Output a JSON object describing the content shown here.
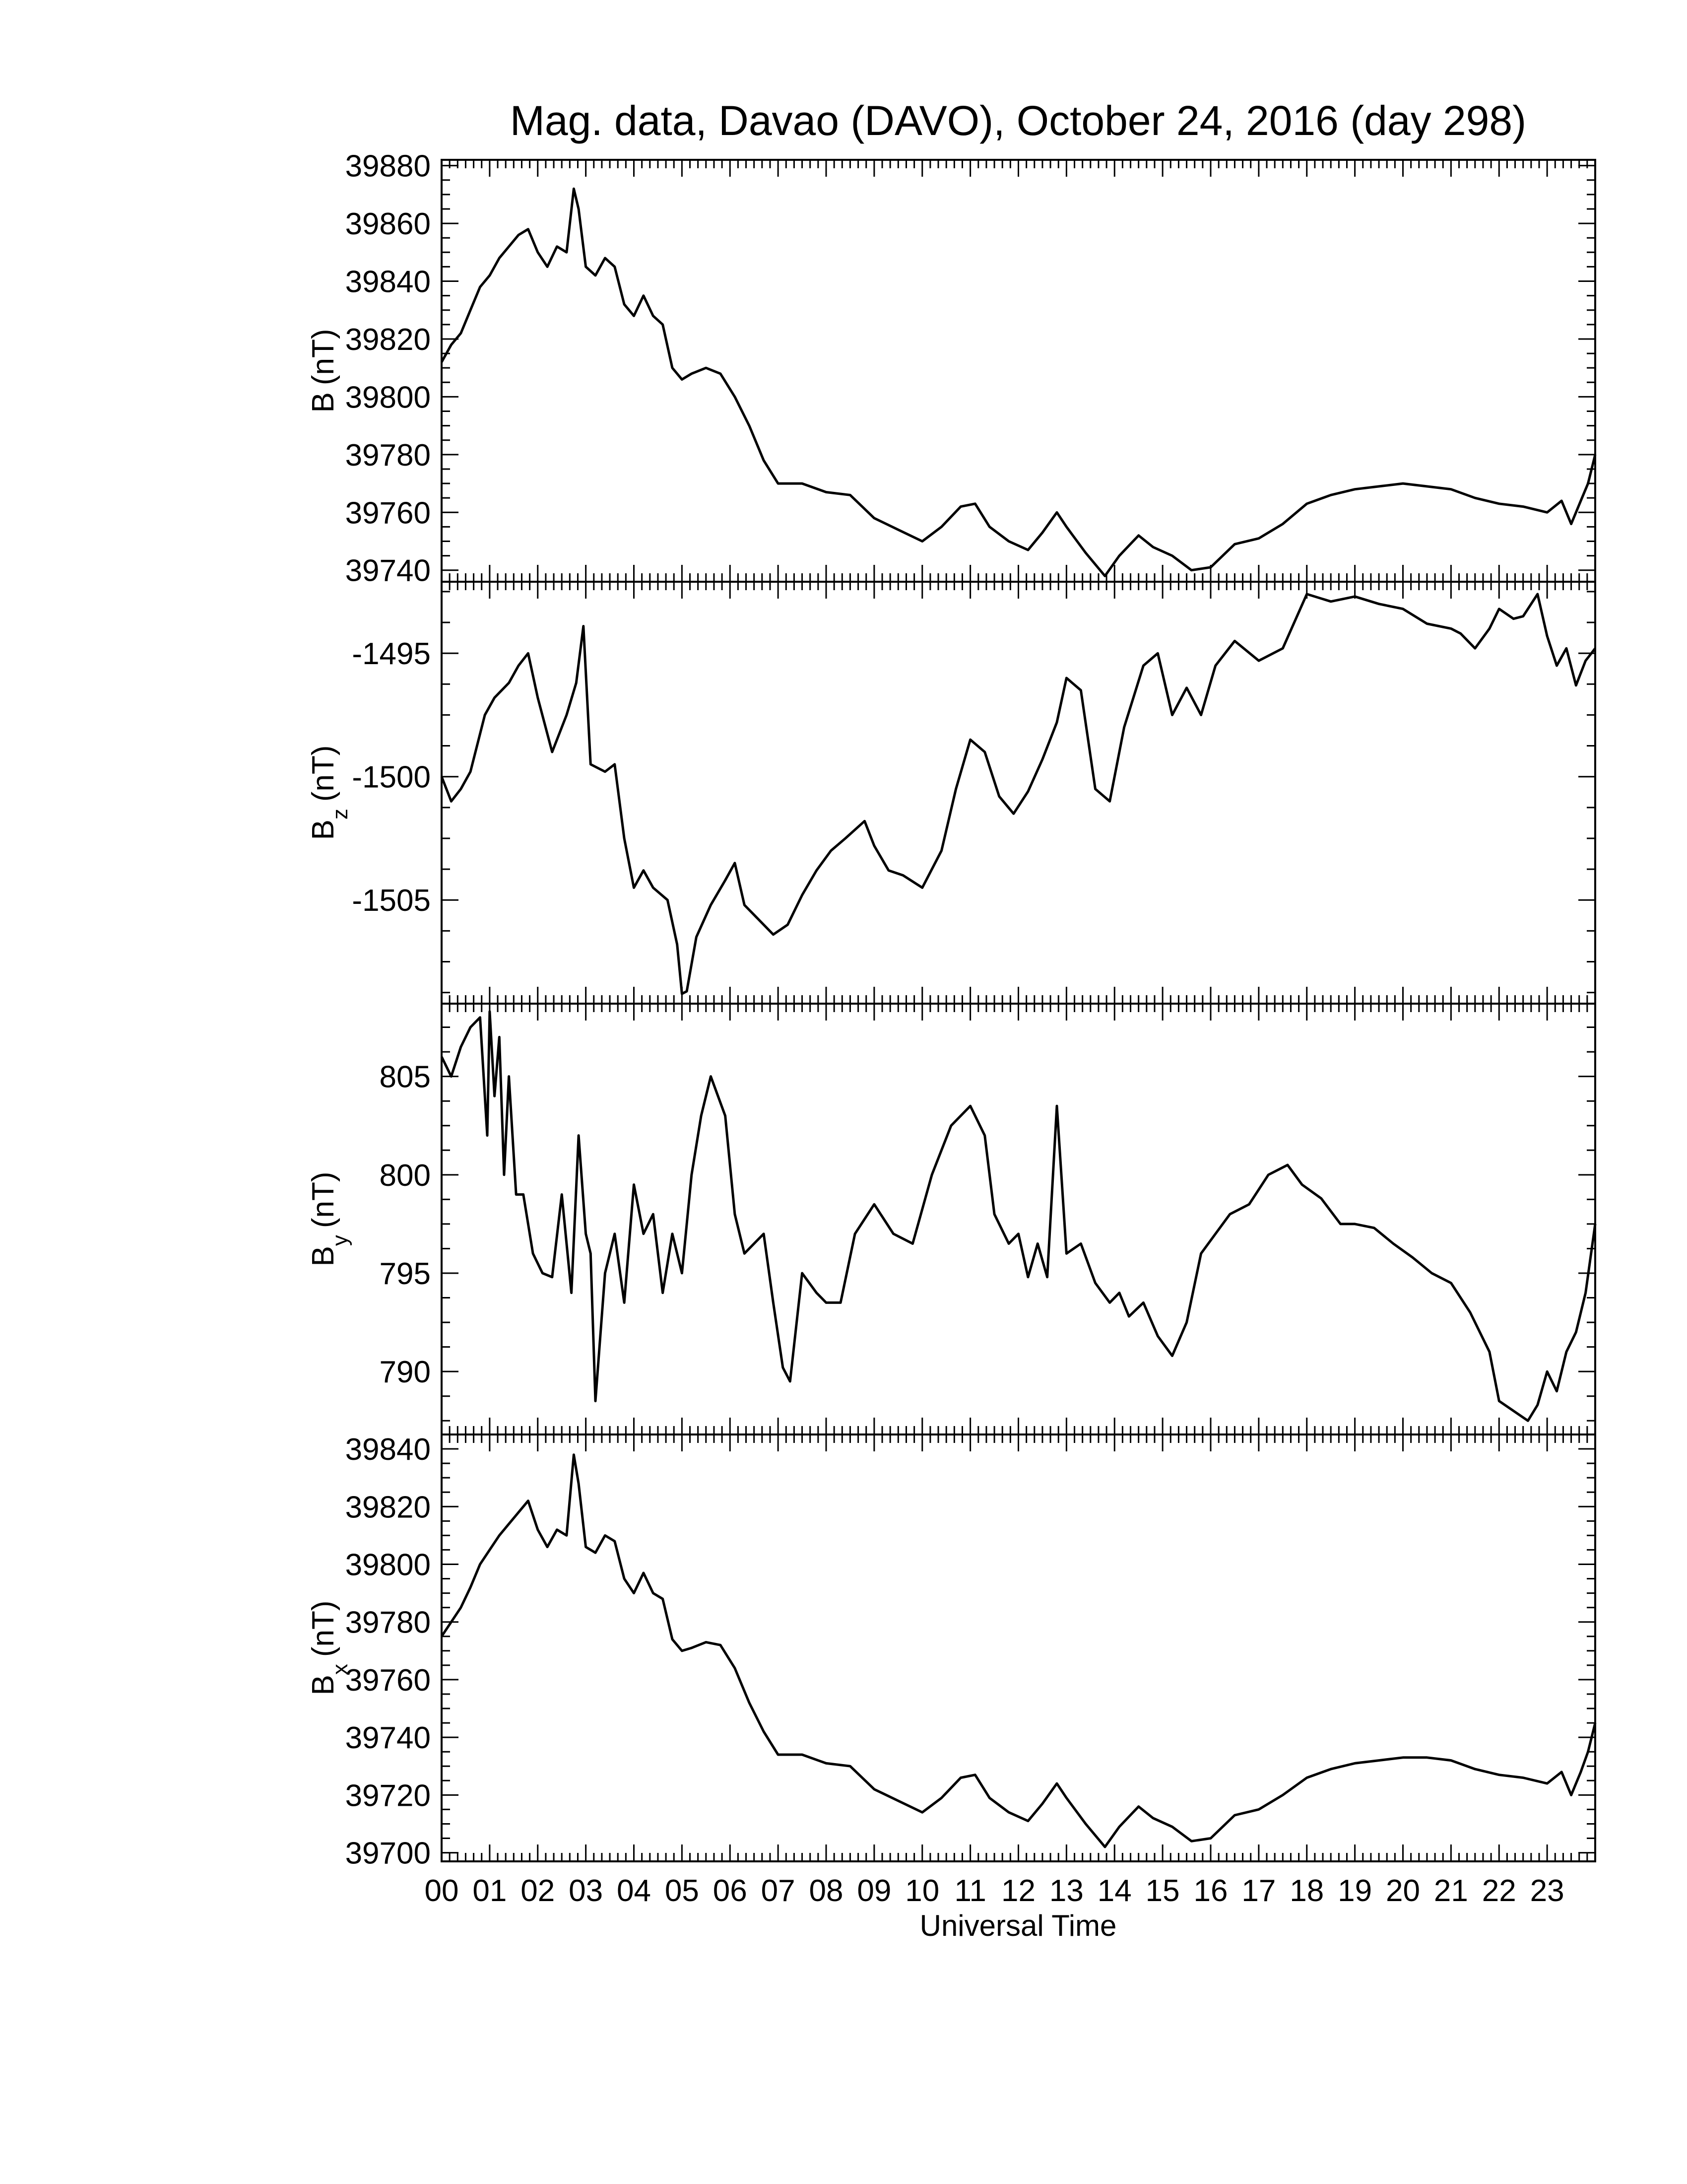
{
  "title": "Mag. data, Davao (DAVO), October 24, 2016 (day 298)",
  "xlabel": "Universal Time",
  "x_tick_labels": [
    "00",
    "01",
    "02",
    "03",
    "04",
    "05",
    "06",
    "07",
    "08",
    "09",
    "10",
    "11",
    "12",
    "13",
    "14",
    "15",
    "16",
    "17",
    "18",
    "19",
    "20",
    "21",
    "22",
    "23"
  ],
  "colors": {
    "line": "#000000",
    "axes": "#000000",
    "background": "#ffffff"
  },
  "chart_data": [
    {
      "type": "line",
      "name": "B",
      "ylabel": "B (nT)",
      "ylabel_main": "B",
      "ylabel_sub": "",
      "ylabel_unit": "(nT)",
      "xlim": [
        0,
        24
      ],
      "ylim": [
        39736,
        39882
      ],
      "yticks": [
        39740,
        39760,
        39780,
        39800,
        39820,
        39840,
        39860,
        39880
      ],
      "ytick_labels": [
        "39740",
        "39760",
        "39780",
        "39800",
        "39820",
        "39840",
        "39860",
        "39880"
      ],
      "x": [
        0,
        0.2,
        0.4,
        0.6,
        0.8,
        1.0,
        1.2,
        1.4,
        1.6,
        1.8,
        2.0,
        2.2,
        2.4,
        2.6,
        2.75,
        2.85,
        3.0,
        3.2,
        3.4,
        3.6,
        3.8,
        4.0,
        4.2,
        4.4,
        4.6,
        4.8,
        5.0,
        5.2,
        5.5,
        5.8,
        6.1,
        6.4,
        6.7,
        7.0,
        7.2,
        7.5,
        8.0,
        8.5,
        9.0,
        9.5,
        10.0,
        10.4,
        10.8,
        11.1,
        11.4,
        11.8,
        12.2,
        12.5,
        12.8,
        13.0,
        13.4,
        13.8,
        14.1,
        14.5,
        14.8,
        15.2,
        15.6,
        16.0,
        16.5,
        17.0,
        17.5,
        18.0,
        18.5,
        19.0,
        19.5,
        20.0,
        20.5,
        21.0,
        21.5,
        22.0,
        22.5,
        23.0,
        23.3,
        23.5,
        23.7,
        23.85,
        24.0
      ],
      "y": [
        39812,
        39818,
        39822,
        39830,
        39838,
        39842,
        39848,
        39852,
        39856,
        39858,
        39850,
        39845,
        39852,
        39850,
        39872,
        39865,
        39845,
        39842,
        39848,
        39845,
        39832,
        39828,
        39835,
        39828,
        39825,
        39810,
        39806,
        39808,
        39810,
        39808,
        39800,
        39790,
        39778,
        39770,
        39770,
        39770,
        39767,
        39766,
        39758,
        39754,
        39750,
        39755,
        39762,
        39763,
        39755,
        39750,
        39747,
        39753,
        39760,
        39755,
        39746,
        39738,
        39745,
        39752,
        39748,
        39745,
        39740,
        39741,
        39749,
        39751,
        39756,
        39763,
        39766,
        39768,
        39769,
        39770,
        39769,
        39768,
        39765,
        39763,
        39762,
        39760,
        39764,
        39756,
        39764,
        39770,
        39780
      ]
    },
    {
      "type": "line",
      "name": "Bz",
      "ylabel": "Bz (nT)",
      "ylabel_main": "B",
      "ylabel_sub": "z",
      "ylabel_unit": "(nT)",
      "xlim": [
        0,
        24
      ],
      "ylim": [
        -1509.2,
        -1492.1
      ],
      "yticks": [
        -1495,
        -1500,
        -1505
      ],
      "ytick_labels": [
        "-1495",
        "-1500",
        "-1505"
      ],
      "x": [
        0,
        0.2,
        0.4,
        0.6,
        0.9,
        1.1,
        1.4,
        1.6,
        1.8,
        2.0,
        2.3,
        2.6,
        2.8,
        2.95,
        3.1,
        3.4,
        3.6,
        3.8,
        4.0,
        4.2,
        4.4,
        4.7,
        4.9,
        5.0,
        5.1,
        5.3,
        5.6,
        5.9,
        6.1,
        6.3,
        6.6,
        6.9,
        7.2,
        7.5,
        7.8,
        8.1,
        8.4,
        8.8,
        9.0,
        9.3,
        9.6,
        10.0,
        10.4,
        10.7,
        11.0,
        11.3,
        11.6,
        11.9,
        12.2,
        12.5,
        12.8,
        13.0,
        13.3,
        13.6,
        13.9,
        14.2,
        14.6,
        14.9,
        15.2,
        15.5,
        15.8,
        16.1,
        16.5,
        17.0,
        17.5,
        18.0,
        18.5,
        19.0,
        19.5,
        20.0,
        20.5,
        21.0,
        21.2,
        21.5,
        21.8,
        22.0,
        22.3,
        22.5,
        22.8,
        23.0,
        23.2,
        23.4,
        23.6,
        23.8,
        24.0
      ],
      "y": [
        -1500,
        -1501,
        -1500.5,
        -1499.8,
        -1497.5,
        -1496.8,
        -1496.2,
        -1495.5,
        -1495,
        -1496.8,
        -1499,
        -1497.5,
        -1496.2,
        -1493.9,
        -1499.5,
        -1499.8,
        -1499.5,
        -1502.5,
        -1504.5,
        -1503.8,
        -1504.5,
        -1505,
        -1506.8,
        -1508.8,
        -1508.7,
        -1506.5,
        -1505.2,
        -1504.2,
        -1503.5,
        -1505.2,
        -1505.8,
        -1506.4,
        -1506,
        -1504.8,
        -1503.8,
        -1503,
        -1502.5,
        -1501.8,
        -1502.8,
        -1503.8,
        -1504,
        -1504.5,
        -1503,
        -1500.5,
        -1498.5,
        -1499,
        -1500.8,
        -1501.5,
        -1500.6,
        -1499.3,
        -1497.8,
        -1496,
        -1496.5,
        -1500.5,
        -1501,
        -1498,
        -1495.5,
        -1495,
        -1497.5,
        -1496.4,
        -1497.5,
        -1495.5,
        -1494.5,
        -1495.3,
        -1494.8,
        -1492.6,
        -1492.9,
        -1492.7,
        -1493,
        -1493.2,
        -1493.8,
        -1494,
        -1494.2,
        -1494.8,
        -1494,
        -1493.2,
        -1493.6,
        -1493.5,
        -1492.6,
        -1494.3,
        -1495.5,
        -1494.8,
        -1496.3,
        -1495.3,
        -1494.8
      ]
    },
    {
      "type": "line",
      "name": "By",
      "ylabel": "By (nT)",
      "ylabel_main": "B",
      "ylabel_sub": "y",
      "ylabel_unit": "(nT)",
      "xlim": [
        0,
        24
      ],
      "ylim": [
        786.8,
        808.7
      ],
      "yticks": [
        790,
        795,
        800,
        805
      ],
      "ytick_labels": [
        "790",
        "795",
        "800",
        "805"
      ],
      "x": [
        0,
        0.2,
        0.4,
        0.6,
        0.8,
        0.95,
        1.0,
        1.1,
        1.2,
        1.3,
        1.4,
        1.55,
        1.7,
        1.9,
        2.1,
        2.3,
        2.5,
        2.7,
        2.85,
        3.0,
        3.1,
        3.2,
        3.4,
        3.6,
        3.8,
        4.0,
        4.2,
        4.4,
        4.6,
        4.8,
        5.0,
        5.2,
        5.4,
        5.6,
        5.9,
        6.1,
        6.3,
        6.5,
        6.7,
        6.9,
        7.1,
        7.25,
        7.5,
        7.8,
        8.0,
        8.3,
        8.6,
        9.0,
        9.4,
        9.8,
        10.2,
        10.6,
        11.0,
        11.3,
        11.5,
        11.8,
        12.0,
        12.2,
        12.4,
        12.6,
        12.8,
        13.0,
        13.3,
        13.6,
        13.9,
        14.1,
        14.3,
        14.6,
        14.9,
        15.2,
        15.5,
        15.8,
        16.1,
        16.4,
        16.8,
        17.2,
        17.6,
        17.9,
        18.3,
        18.7,
        19.0,
        19.4,
        19.8,
        20.2,
        20.6,
        21.0,
        21.4,
        21.8,
        22.0,
        22.3,
        22.6,
        22.8,
        23.0,
        23.2,
        23.4,
        23.6,
        23.8,
        24.0
      ],
      "y": [
        806,
        805,
        806.5,
        807.5,
        808,
        802,
        808.3,
        804,
        807,
        800,
        805,
        799,
        799,
        796,
        795,
        794.8,
        799,
        794,
        802,
        797,
        796,
        788.5,
        795,
        797,
        793.5,
        799.5,
        797,
        798,
        794,
        797,
        795,
        800,
        803,
        805,
        803,
        798,
        796,
        796.5,
        797,
        793.5,
        790.2,
        789.5,
        795,
        794,
        793.5,
        793.5,
        797,
        798.5,
        797,
        796.5,
        800,
        802.5,
        803.5,
        802,
        798,
        796.5,
        797,
        794.8,
        796.5,
        794.8,
        803.5,
        796,
        796.5,
        794.5,
        793.5,
        794,
        792.8,
        793.5,
        791.8,
        790.8,
        792.5,
        796,
        797,
        798,
        798.5,
        800,
        800.5,
        799.5,
        798.8,
        797.5,
        797.5,
        797.3,
        796.5,
        795.8,
        795,
        794.5,
        793,
        791,
        788.5,
        788,
        787.5,
        788.3,
        790,
        789,
        791,
        792,
        794,
        797.5
      ]
    },
    {
      "type": "line",
      "name": "Bx",
      "ylabel": "Bx (nT)",
      "ylabel_main": "B",
      "ylabel_sub": "x",
      "ylabel_unit": "(nT)",
      "xlim": [
        0,
        24
      ],
      "ylim": [
        39697,
        39845
      ],
      "yticks": [
        39700,
        39720,
        39740,
        39760,
        39780,
        39800,
        39820,
        39840
      ],
      "ytick_labels": [
        "39700",
        "39720",
        "39740",
        "39760",
        "39780",
        "39800",
        "39820",
        "39840"
      ],
      "x": [
        0,
        0.2,
        0.4,
        0.6,
        0.8,
        1.0,
        1.2,
        1.4,
        1.6,
        1.8,
        2.0,
        2.2,
        2.4,
        2.6,
        2.75,
        2.85,
        3.0,
        3.2,
        3.4,
        3.6,
        3.8,
        4.0,
        4.2,
        4.4,
        4.6,
        4.8,
        5.0,
        5.2,
        5.5,
        5.8,
        6.1,
        6.4,
        6.7,
        7.0,
        7.2,
        7.5,
        8.0,
        8.5,
        9.0,
        9.5,
        10.0,
        10.4,
        10.8,
        11.1,
        11.4,
        11.8,
        12.2,
        12.5,
        12.8,
        13.0,
        13.4,
        13.8,
        14.1,
        14.5,
        14.8,
        15.2,
        15.6,
        16.0,
        16.5,
        17.0,
        17.5,
        18.0,
        18.5,
        19.0,
        19.5,
        20.0,
        20.5,
        21.0,
        21.5,
        22.0,
        22.5,
        23.0,
        23.3,
        23.5,
        23.7,
        23.85,
        24.0
      ],
      "y": [
        39775,
        39780,
        39785,
        39792,
        39800,
        39805,
        39810,
        39814,
        39818,
        39822,
        39812,
        39806,
        39812,
        39810,
        39838,
        39828,
        39806,
        39804,
        39810,
        39808,
        39795,
        39790,
        39797,
        39790,
        39788,
        39774,
        39770,
        39771,
        39773,
        39772,
        39764,
        39752,
        39742,
        39734,
        39734,
        39734,
        39731,
        39730,
        39722,
        39718,
        39714,
        39719,
        39726,
        39727,
        39719,
        39714,
        39711,
        39717,
        39724,
        39719,
        39710,
        39702,
        39709,
        39716,
        39712,
        39709,
        39704,
        39705,
        39713,
        39715,
        39720,
        39726,
        39729,
        39731,
        39732,
        39733,
        39733,
        39732,
        39729,
        39727,
        39726,
        39724,
        39728,
        39720,
        39728,
        39735,
        39745
      ]
    }
  ]
}
